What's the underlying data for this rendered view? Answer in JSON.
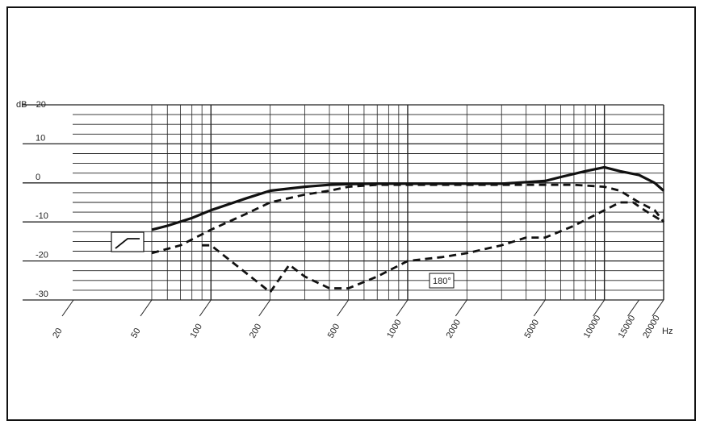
{
  "chart_data": {
    "type": "line",
    "ylabel": "dB",
    "top_tick_label": "-20",
    "y_tick_labels": [
      "10",
      "0",
      "-10",
      "-20",
      "-30"
    ],
    "y_tick_values": [
      10,
      0,
      -10,
      -20,
      -30
    ],
    "ylim": [
      -30,
      20
    ],
    "x_scale": "log",
    "xlim": [
      50,
      20000
    ],
    "x_tick_labels": [
      "20",
      "50",
      "100",
      "200",
      "500",
      "1000",
      "2000",
      "5000",
      "10000",
      "15000",
      "20000"
    ],
    "x_tick_values": [
      20,
      50,
      100,
      200,
      500,
      1000,
      2000,
      5000,
      10000,
      15000,
      20000
    ],
    "x_unit_label": "Hz",
    "grid": true,
    "annotation": "180°",
    "series": [
      {
        "style": "solid",
        "x": [
          50,
          60,
          80,
          100,
          150,
          200,
          300,
          400,
          500,
          700,
          1000,
          2000,
          3000,
          5000,
          6000,
          8000,
          10000,
          12000,
          15000,
          18000,
          20000
        ],
        "y": [
          -12,
          -11,
          -9,
          -7,
          -4,
          -2,
          -1,
          -0.5,
          -0.3,
          -0.2,
          -0.2,
          -0.2,
          -0.2,
          0.5,
          1.5,
          3,
          4,
          3,
          2,
          0,
          -2
        ]
      },
      {
        "style": "dashed",
        "x": [
          50,
          70,
          100,
          150,
          200,
          300,
          400,
          500,
          700,
          1000,
          2000,
          3000,
          5000,
          7000,
          10000,
          12000,
          15000,
          18000,
          20000
        ],
        "y": [
          -18,
          -16,
          -12,
          -8,
          -5,
          -3,
          -2,
          -1,
          -0.5,
          -0.5,
          -0.5,
          -0.5,
          -0.5,
          -0.5,
          -1,
          -2,
          -5,
          -7,
          -10
        ]
      },
      {
        "style": "dashed",
        "x": [
          90,
          100,
          150,
          200,
          250,
          300,
          400,
          500,
          700,
          1000,
          1500,
          2000,
          3000,
          4000,
          5000,
          7000,
          10000,
          12000,
          14000,
          16000,
          20000
        ],
        "y": [
          -16,
          -16,
          -23,
          -28,
          -21,
          -24,
          -27,
          -27,
          -24,
          -20,
          -19,
          -18,
          -16,
          -14,
          -14,
          -11,
          -7,
          -5,
          -5,
          -7,
          -10
        ]
      }
    ]
  }
}
